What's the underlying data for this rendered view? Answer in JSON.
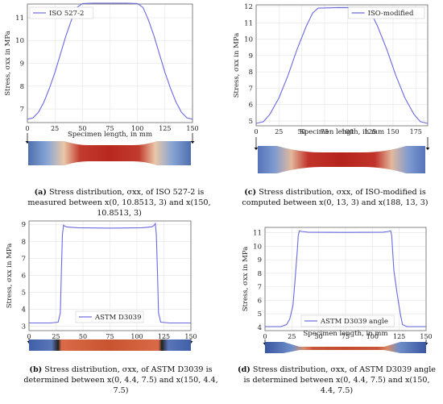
{
  "chart_data": [
    {
      "id": "a",
      "type": "line",
      "ylabel": "Stress, σxx in MPa",
      "xlabel": "Specimen length, in mm",
      "xlim": [
        0,
        150
      ],
      "ylim": [
        6.4,
        11.6
      ],
      "xticks": [
        0,
        25,
        50,
        75,
        100,
        125,
        150
      ],
      "yticks": [
        7,
        8,
        9,
        10,
        11
      ],
      "legend": "ISO 527-2",
      "legend_position": "top-left",
      "color": "#6a6adf",
      "points": [
        [
          0,
          6.55
        ],
        [
          5,
          6.6
        ],
        [
          10,
          6.85
        ],
        [
          15,
          7.3
        ],
        [
          20,
          7.9
        ],
        [
          25,
          8.6
        ],
        [
          30,
          9.4
        ],
        [
          35,
          10.2
        ],
        [
          40,
          10.9
        ],
        [
          45,
          11.45
        ],
        [
          50,
          11.62
        ],
        [
          60,
          11.64
        ],
        [
          75,
          11.64
        ],
        [
          90,
          11.64
        ],
        [
          100,
          11.62
        ],
        [
          105,
          11.45
        ],
        [
          110,
          10.9
        ],
        [
          115,
          10.2
        ],
        [
          120,
          9.4
        ],
        [
          125,
          8.6
        ],
        [
          130,
          7.9
        ],
        [
          135,
          7.3
        ],
        [
          140,
          6.85
        ],
        [
          145,
          6.6
        ],
        [
          150,
          6.55
        ]
      ],
      "caption_label": "(a)",
      "caption_text": " Stress distribution, σxx, of ISO 527-2 is measured between x(0, 10.8513, 3) and x(150, 10.8513, 3)"
    },
    {
      "id": "c",
      "type": "line",
      "ylabel": "Stress, σxx in MPa",
      "xlabel": "Specimen length, in mm",
      "xlim": [
        0,
        188
      ],
      "ylim": [
        4.7,
        12.1
      ],
      "xticks": [
        0,
        25,
        50,
        75,
        100,
        125,
        150,
        175
      ],
      "yticks": [
        5,
        6,
        7,
        8,
        9,
        10,
        11,
        12
      ],
      "legend": "ISO-modified",
      "legend_position": "top-right",
      "color": "#6a6adf",
      "points": [
        [
          0,
          4.85
        ],
        [
          8,
          4.95
        ],
        [
          15,
          5.4
        ],
        [
          25,
          6.4
        ],
        [
          35,
          7.8
        ],
        [
          45,
          9.4
        ],
        [
          55,
          10.8
        ],
        [
          62,
          11.6
        ],
        [
          68,
          11.9
        ],
        [
          90,
          11.93
        ],
        [
          120,
          11.92
        ],
        [
          126,
          11.6
        ],
        [
          133,
          10.8
        ],
        [
          143,
          9.4
        ],
        [
          153,
          7.8
        ],
        [
          163,
          6.4
        ],
        [
          173,
          5.4
        ],
        [
          180,
          4.95
        ],
        [
          188,
          4.85
        ]
      ],
      "caption_label": "(c)",
      "caption_text": " Stress distribution, σxx, of ISO-modified is computed between x(0, 13, 3) and x(188, 13, 3)"
    },
    {
      "id": "b",
      "type": "line",
      "ylabel": "Stress, σxx in MPa",
      "xlabel": "",
      "xlim": [
        0,
        150
      ],
      "ylim": [
        2.75,
        9.2
      ],
      "xticks": [
        0,
        25,
        50,
        75,
        100,
        125,
        150
      ],
      "yticks": [
        3,
        4,
        5,
        6,
        7,
        8,
        9
      ],
      "legend": "ASTM D3039",
      "legend_position": "bottom-center",
      "color": "#6a6adf",
      "points": [
        [
          0,
          3.2
        ],
        [
          20,
          3.2
        ],
        [
          27,
          3.25
        ],
        [
          29,
          3.8
        ],
        [
          30,
          6.2
        ],
        [
          31,
          8.4
        ],
        [
          32,
          8.95
        ],
        [
          33,
          8.9
        ],
        [
          35,
          8.85
        ],
        [
          45,
          8.8
        ],
        [
          75,
          8.78
        ],
        [
          105,
          8.8
        ],
        [
          114,
          8.86
        ],
        [
          116,
          8.95
        ],
        [
          117,
          9.05
        ],
        [
          118,
          8.4
        ],
        [
          119,
          6.2
        ],
        [
          120,
          3.8
        ],
        [
          122,
          3.25
        ],
        [
          130,
          3.2
        ],
        [
          150,
          3.2
        ]
      ],
      "caption_label": "(b)",
      "caption_text": " Stress distribution, σxx, of ASTM D3039 is determined between x(0, 4.4, 7.5) and x(150, 4.4, 7.5)"
    },
    {
      "id": "d",
      "type": "line",
      "ylabel": "Stress, σxx in MPa",
      "xlabel": "Specimen length, in mm",
      "xlim": [
        0,
        150
      ],
      "ylim": [
        3.75,
        11.4
      ],
      "xticks": [
        0,
        25,
        50,
        75,
        100,
        125,
        150
      ],
      "yticks": [
        4,
        5,
        6,
        7,
        8,
        9,
        10,
        11
      ],
      "legend": "ASTM D3039 angle",
      "legend_position": "bottom-center",
      "color": "#6a6adf",
      "points": [
        [
          0,
          4.05
        ],
        [
          15,
          4.05
        ],
        [
          20,
          4.2
        ],
        [
          23,
          4.6
        ],
        [
          26,
          5.6
        ],
        [
          28,
          7.5
        ],
        [
          30,
          9.6
        ],
        [
          31,
          10.8
        ],
        [
          32,
          11.15
        ],
        [
          34,
          11.1
        ],
        [
          40,
          11.05
        ],
        [
          75,
          11.03
        ],
        [
          110,
          11.05
        ],
        [
          115,
          11.1
        ],
        [
          117,
          11.15
        ],
        [
          118,
          10.8
        ],
        [
          120,
          8.2
        ],
        [
          123,
          6.5
        ],
        [
          126,
          5.0
        ],
        [
          128,
          4.2
        ],
        [
          132,
          4.05
        ],
        [
          150,
          4.05
        ]
      ],
      "caption_label": "(d)",
      "caption_text": " Stress distribution, σxx, of ASTM D3039 angle is determined between x(0, 4.4, 7.5) and x(150, 4.4, 7.5)"
    }
  ]
}
